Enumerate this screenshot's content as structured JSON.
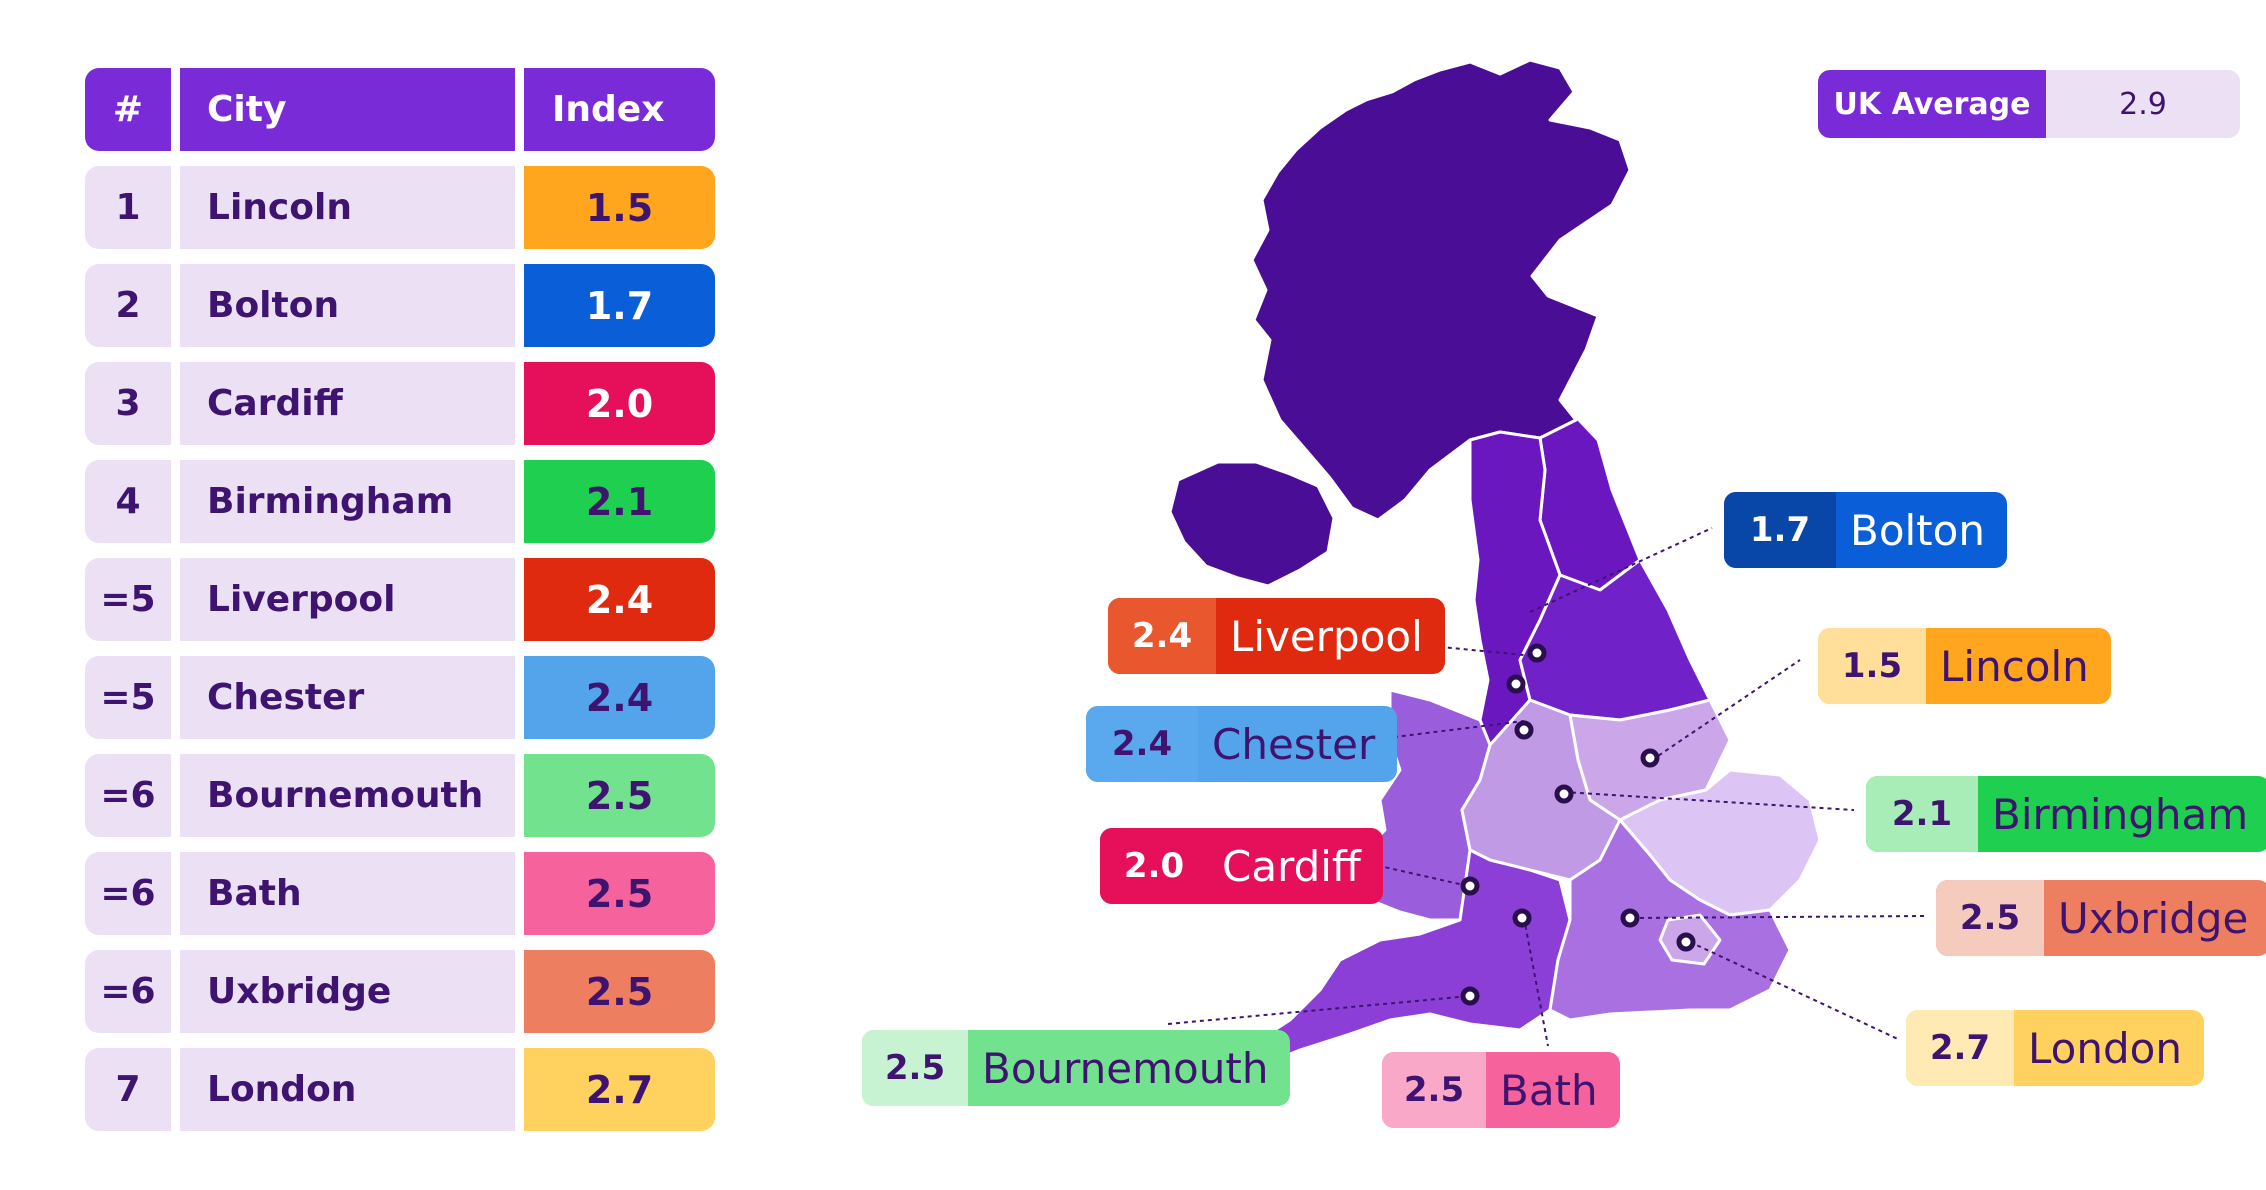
{
  "table": {
    "headers": {
      "rank": "#",
      "city": "City",
      "index": "Index"
    },
    "rows": [
      {
        "rank": "1",
        "city": "Lincoln",
        "index": "1.5",
        "color": "#ffa51e",
        "text_color": "#3e1470"
      },
      {
        "rank": "2",
        "city": "Bolton",
        "index": "1.7",
        "color": "#0a5fd8",
        "text_color": "#ffffff"
      },
      {
        "rank": "3",
        "city": "Cardiff",
        "index": "2.0",
        "color": "#e6105a",
        "text_color": "#ffffff"
      },
      {
        "rank": "4",
        "city": "Birmingham",
        "index": "2.1",
        "color": "#1fcf4f",
        "text_color": "#3e1470"
      },
      {
        "rank": "=5",
        "city": "Liverpool",
        "index": "2.4",
        "color": "#e02a10",
        "text_color": "#ffffff"
      },
      {
        "rank": "=5",
        "city": "Chester",
        "index": "2.4",
        "color": "#54a4ec",
        "text_color": "#3e1470"
      },
      {
        "rank": "=6",
        "city": "Bournemouth",
        "index": "2.5",
        "color": "#72e28e",
        "text_color": "#3e1470"
      },
      {
        "rank": "=6",
        "city": "Bath",
        "index": "2.5",
        "color": "#f5629c",
        "text_color": "#3e1470"
      },
      {
        "rank": "=6",
        "city": "Uxbridge",
        "index": "2.5",
        "color": "#ee7e60",
        "text_color": "#3e1470"
      },
      {
        "rank": "7",
        "city": "London",
        "index": "2.7",
        "color": "#ffd15e",
        "text_color": "#3e1470"
      }
    ]
  },
  "uk_average": {
    "label": "UK Average",
    "value": "2.9"
  },
  "map_labels": [
    {
      "city": "Bolton",
      "value": "1.7",
      "bg": "#0a5fd8",
      "value_bg": "#0847a8",
      "text_color": "#ffffff",
      "value_color": "#ffffff"
    },
    {
      "city": "Liverpool",
      "value": "2.4",
      "bg": "#e02a10",
      "value_bg": "#e9572f",
      "text_color": "#ffffff",
      "value_color": "#ffffff"
    },
    {
      "city": "Lincoln",
      "value": "1.5",
      "bg": "#ffa51e",
      "value_bg": "#ffdf9a",
      "text_color": "#3e1470",
      "value_color": "#3e1470"
    },
    {
      "city": "Chester",
      "value": "2.4",
      "bg": "#54a4ec",
      "value_bg": "#5aa8ee",
      "text_color": "#3e1470",
      "value_color": "#3e1470"
    },
    {
      "city": "Birmingham",
      "value": "2.1",
      "bg": "#1fcf4f",
      "value_bg": "#a8ecb8",
      "text_color": "#3e1470",
      "value_color": "#3e1470"
    },
    {
      "city": "Cardiff",
      "value": "2.0",
      "bg": "#e6105a",
      "value_bg": "#e6105a",
      "text_color": "#ffffff",
      "value_color": "#ffffff"
    },
    {
      "city": "Uxbridge",
      "value": "2.5",
      "bg": "#ee7e60",
      "value_bg": "#f4cbbd",
      "text_color": "#3e1470",
      "value_color": "#3e1470"
    },
    {
      "city": "London",
      "value": "2.7",
      "bg": "#ffd15e",
      "value_bg": "#ffeab3",
      "text_color": "#3e1470",
      "value_color": "#3e1470"
    },
    {
      "city": "Bournemouth",
      "value": "2.5",
      "bg": "#72e28e",
      "value_bg": "#c7f3d3",
      "text_color": "#3e1470",
      "value_color": "#3e1470"
    },
    {
      "city": "Bath",
      "value": "2.5",
      "bg": "#f5629c",
      "value_bg": "#f9a8c8",
      "text_color": "#3e1470",
      "value_color": "#3e1470"
    }
  ]
}
